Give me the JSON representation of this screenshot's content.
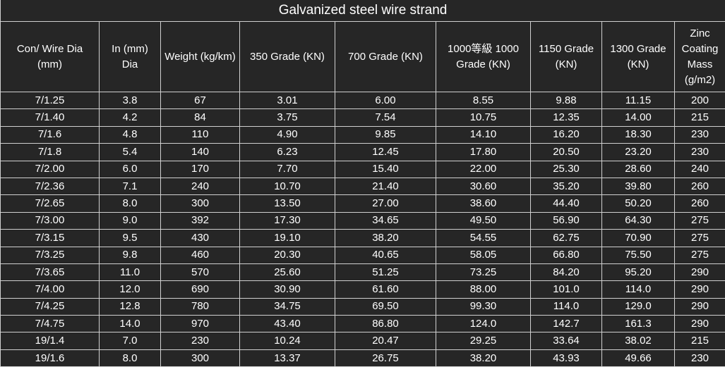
{
  "title": "Galvanized steel wire strand",
  "header": [
    [
      "Con/ Wire Dia",
      "(mm)"
    ],
    [
      "In (mm)",
      "Dia"
    ],
    [
      "Weight (kg/km)"
    ],
    [
      "350 Grade (KN)"
    ],
    [
      "700 Grade (KN)"
    ],
    [
      "1000等級  1000",
      "Grade (KN)"
    ],
    [
      "1150 Grade",
      "(KN)"
    ],
    [
      "1300 Grade",
      "(KN)"
    ],
    [
      "Zinc",
      "Coating",
      "Mass",
      "(g/m2)"
    ]
  ],
  "rows": [
    [
      "7/1.25",
      "3.8",
      "67",
      "3.01",
      "6.00",
      "8.55",
      "9.88",
      "11.15",
      "200"
    ],
    [
      "7/1.40",
      "4.2",
      "84",
      "3.75",
      "7.54",
      "10.75",
      "12.35",
      "14.00",
      "215"
    ],
    [
      "7/1.6",
      "4.8",
      "110",
      "4.90",
      "9.85",
      "14.10",
      "16.20",
      "18.30",
      "230"
    ],
    [
      "7/1.8",
      "5.4",
      "140",
      "6.23",
      "12.45",
      "17.80",
      "20.50",
      "23.20",
      "230"
    ],
    [
      "7/2.00",
      "6.0",
      "170",
      "7.70",
      "15.40",
      "22.00",
      "25.30",
      "28.60",
      "240"
    ],
    [
      "7/2.36",
      "7.1",
      "240",
      "10.70",
      "21.40",
      "30.60",
      "35.20",
      "39.80",
      "260"
    ],
    [
      "7/2.65",
      "8.0",
      "300",
      "13.50",
      "27.00",
      "38.60",
      "44.40",
      "50.20",
      "260"
    ],
    [
      "7/3.00",
      "9.0",
      "392",
      "17.30",
      "34.65",
      "49.50",
      "56.90",
      "64.30",
      "275"
    ],
    [
      "7/3.15",
      "9.5",
      "430",
      "19.10",
      "38.20",
      "54.55",
      "62.75",
      "70.90",
      "275"
    ],
    [
      "7/3.25",
      "9.8",
      "460",
      "20.30",
      "40.65",
      "58.05",
      "66.80",
      "75.50",
      "275"
    ],
    [
      "7/3.65",
      "11.0",
      "570",
      "25.60",
      "51.25",
      "73.25",
      "84.20",
      "95.20",
      "290"
    ],
    [
      "7/4.00",
      "12.0",
      "690",
      "30.90",
      "61.60",
      "88.00",
      "101.0",
      "114.0",
      "290"
    ],
    [
      "7/4.25",
      "12.8",
      "780",
      "34.75",
      "69.50",
      "99.30",
      "114.0",
      "129.0",
      "290"
    ],
    [
      "7/4.75",
      "14.0",
      "970",
      "43.40",
      "86.80",
      "124.0",
      "142.7",
      "161.3",
      "290"
    ],
    [
      "19/1.4",
      "7.0",
      "230",
      "10.24",
      "20.47",
      "29.25",
      "33.64",
      "38.02",
      "215"
    ],
    [
      "19/1.6",
      "8.0",
      "300",
      "13.37",
      "26.75",
      "38.20",
      "43.93",
      "49.66",
      "230"
    ]
  ]
}
